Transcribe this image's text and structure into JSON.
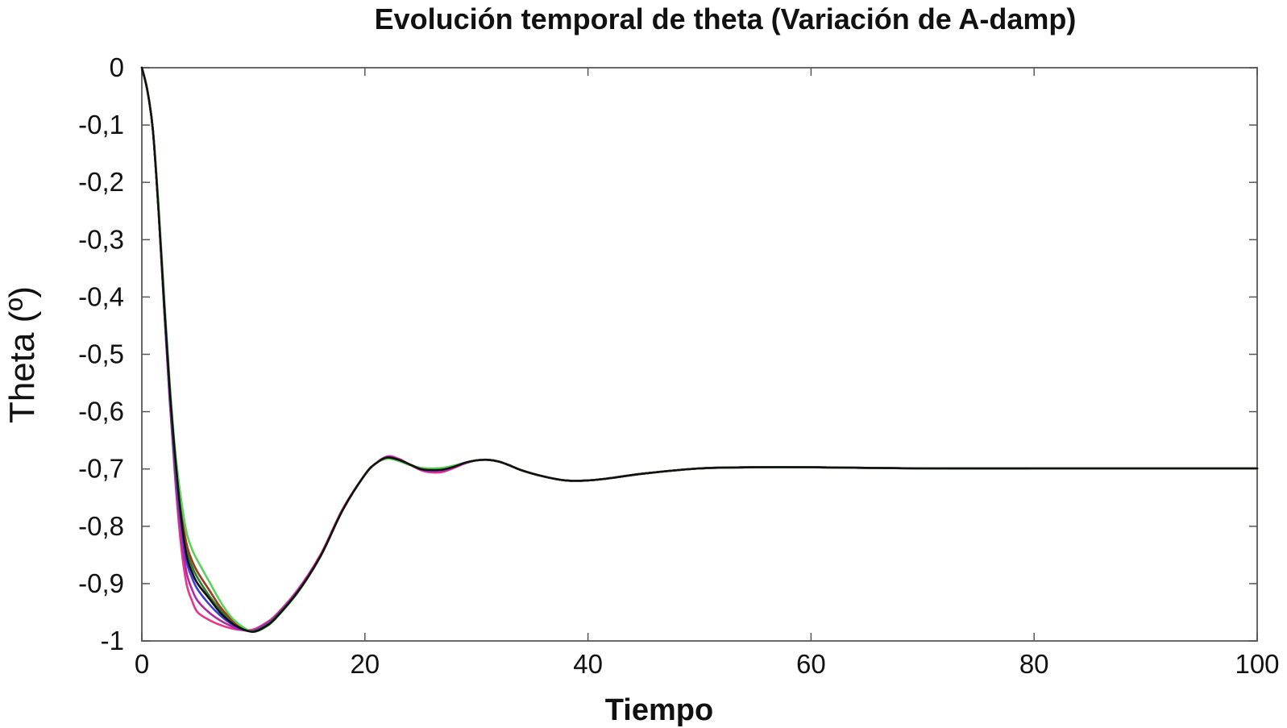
{
  "chart_data": {
    "type": "line",
    "title": "Evolución temporal de theta (Variación de A-damp)",
    "xlabel": "Tiempo",
    "ylabel": "Theta (º)",
    "xlim": [
      0,
      100
    ],
    "ylim": [
      -1,
      0
    ],
    "x_ticks": [
      0,
      20,
      40,
      60,
      80,
      100
    ],
    "x_tick_labels": [
      "0",
      "20",
      "40",
      "60",
      "80",
      "100"
    ],
    "y_ticks": [
      0,
      -0.1,
      -0.2,
      -0.3,
      -0.4,
      -0.5,
      -0.6,
      -0.7,
      -0.8,
      -0.9,
      -1
    ],
    "y_tick_labels": [
      "0",
      "-0,1",
      "-0,2",
      "-0,3",
      "-0,4",
      "-0,5",
      "-0,6",
      "-0,7",
      "-0,8",
      "-0,9",
      "-1"
    ],
    "grid": false,
    "legend": "none",
    "x": [
      0,
      0.5,
      1,
      1.5,
      2,
      2.5,
      3,
      3.5,
      4,
      4.5,
      5,
      6,
      7,
      8,
      9,
      10,
      11,
      12,
      14,
      16,
      18,
      20,
      21,
      22,
      23,
      24,
      25,
      26,
      27,
      28,
      29,
      30,
      31,
      32,
      33,
      34,
      36,
      38,
      40,
      42,
      45,
      50,
      55,
      60,
      70,
      80,
      90,
      100
    ],
    "series": [
      {
        "color": "#e8338f",
        "values": [
          0,
          -0.04,
          -0.11,
          -0.25,
          -0.42,
          -0.58,
          -0.72,
          -0.83,
          -0.9,
          -0.93,
          -0.95,
          -0.963,
          -0.972,
          -0.978,
          -0.981,
          -0.98,
          -0.97,
          -0.955,
          -0.91,
          -0.85,
          -0.77,
          -0.71,
          -0.69,
          -0.678,
          -0.682,
          -0.692,
          -0.702,
          -0.706,
          -0.705,
          -0.698,
          -0.69,
          -0.685,
          -0.684,
          -0.687,
          -0.694,
          -0.702,
          -0.713,
          -0.72,
          -0.72,
          -0.716,
          -0.708,
          -0.699,
          -0.697,
          -0.697,
          -0.699,
          -0.699,
          -0.699,
          -0.699
        ]
      },
      {
        "color": "#b02aa8",
        "values": [
          0,
          -0.04,
          -0.11,
          -0.25,
          -0.42,
          -0.58,
          -0.71,
          -0.81,
          -0.88,
          -0.91,
          -0.93,
          -0.95,
          -0.964,
          -0.974,
          -0.981,
          -0.982,
          -0.972,
          -0.957,
          -0.912,
          -0.852,
          -0.772,
          -0.71,
          -0.69,
          -0.679,
          -0.683,
          -0.692,
          -0.701,
          -0.704,
          -0.703,
          -0.697,
          -0.69,
          -0.685,
          -0.684,
          -0.687,
          -0.694,
          -0.702,
          -0.713,
          -0.72,
          -0.72,
          -0.716,
          -0.708,
          -0.699,
          -0.697,
          -0.697,
          -0.699,
          -0.699,
          -0.699,
          -0.699
        ]
      },
      {
        "color": "#3d3dd6",
        "values": [
          0,
          -0.04,
          -0.11,
          -0.25,
          -0.42,
          -0.57,
          -0.7,
          -0.79,
          -0.86,
          -0.89,
          -0.91,
          -0.935,
          -0.955,
          -0.97,
          -0.98,
          -0.983,
          -0.974,
          -0.958,
          -0.913,
          -0.853,
          -0.772,
          -0.71,
          -0.69,
          -0.68,
          -0.684,
          -0.692,
          -0.7,
          -0.702,
          -0.701,
          -0.696,
          -0.689,
          -0.685,
          -0.684,
          -0.687,
          -0.694,
          -0.702,
          -0.713,
          -0.72,
          -0.72,
          -0.716,
          -0.708,
          -0.699,
          -0.697,
          -0.697,
          -0.699,
          -0.699,
          -0.699,
          -0.699
        ]
      },
      {
        "color": "#2e7d32",
        "values": [
          0,
          -0.04,
          -0.11,
          -0.25,
          -0.41,
          -0.56,
          -0.69,
          -0.78,
          -0.84,
          -0.87,
          -0.89,
          -0.92,
          -0.945,
          -0.965,
          -0.978,
          -0.983,
          -0.975,
          -0.959,
          -0.914,
          -0.853,
          -0.772,
          -0.71,
          -0.69,
          -0.681,
          -0.685,
          -0.692,
          -0.699,
          -0.701,
          -0.7,
          -0.695,
          -0.689,
          -0.685,
          -0.684,
          -0.687,
          -0.694,
          -0.702,
          -0.713,
          -0.72,
          -0.72,
          -0.716,
          -0.708,
          -0.699,
          -0.697,
          -0.697,
          -0.699,
          -0.699,
          -0.699,
          -0.699
        ]
      },
      {
        "color": "#9a3b1b",
        "values": [
          0,
          -0.04,
          -0.11,
          -0.25,
          -0.41,
          -0.56,
          -0.68,
          -0.77,
          -0.83,
          -0.86,
          -0.88,
          -0.91,
          -0.94,
          -0.962,
          -0.977,
          -0.984,
          -0.976,
          -0.96,
          -0.914,
          -0.853,
          -0.772,
          -0.71,
          -0.69,
          -0.681,
          -0.685,
          -0.693,
          -0.699,
          -0.7,
          -0.699,
          -0.695,
          -0.689,
          -0.685,
          -0.684,
          -0.687,
          -0.694,
          -0.702,
          -0.713,
          -0.72,
          -0.72,
          -0.716,
          -0.708,
          -0.699,
          -0.697,
          -0.697,
          -0.699,
          -0.699,
          -0.699,
          -0.699
        ]
      },
      {
        "color": "#5ad15a",
        "values": [
          0,
          -0.04,
          -0.11,
          -0.24,
          -0.4,
          -0.55,
          -0.67,
          -0.75,
          -0.81,
          -0.84,
          -0.86,
          -0.895,
          -0.93,
          -0.958,
          -0.975,
          -0.984,
          -0.977,
          -0.961,
          -0.915,
          -0.853,
          -0.772,
          -0.71,
          -0.69,
          -0.682,
          -0.686,
          -0.693,
          -0.698,
          -0.699,
          -0.698,
          -0.694,
          -0.689,
          -0.685,
          -0.684,
          -0.687,
          -0.694,
          -0.702,
          -0.713,
          -0.72,
          -0.72,
          -0.716,
          -0.708,
          -0.699,
          -0.697,
          -0.697,
          -0.699,
          -0.699,
          -0.699,
          -0.699
        ]
      },
      {
        "color": "#111111",
        "values": [
          0,
          -0.04,
          -0.11,
          -0.25,
          -0.41,
          -0.56,
          -0.68,
          -0.78,
          -0.85,
          -0.88,
          -0.9,
          -0.925,
          -0.95,
          -0.968,
          -0.979,
          -0.984,
          -0.976,
          -0.96,
          -0.914,
          -0.853,
          -0.772,
          -0.71,
          -0.69,
          -0.68,
          -0.684,
          -0.692,
          -0.7,
          -0.702,
          -0.701,
          -0.696,
          -0.689,
          -0.685,
          -0.684,
          -0.687,
          -0.694,
          -0.702,
          -0.713,
          -0.72,
          -0.72,
          -0.716,
          -0.708,
          -0.699,
          -0.697,
          -0.697,
          -0.699,
          -0.699,
          -0.699,
          -0.699
        ]
      }
    ]
  }
}
